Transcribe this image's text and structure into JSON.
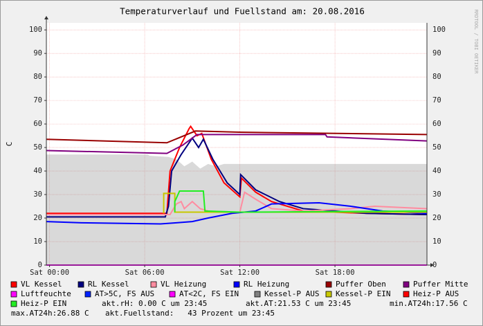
{
  "chart_data": {
    "type": "line",
    "title": "Temperaturverlauf und Fuellstand am: 20.08.2016",
    "y_label": "C",
    "side_text": "RRDTOOL / TOBI OETIKER",
    "xlim": [
      -0.2,
      23.8
    ],
    "xticks": [
      {
        "value": 0,
        "label": "Sat 00:00"
      },
      {
        "value": 6,
        "label": "Sat 06:00"
      },
      {
        "value": 12,
        "label": "Sat 12:00"
      },
      {
        "value": 18,
        "label": "Sat 18:00"
      }
    ],
    "ylim": [
      0,
      103
    ],
    "yticks": [
      0,
      10,
      20,
      30,
      40,
      50,
      60,
      70,
      80,
      90,
      100
    ],
    "grid": true,
    "series": [
      {
        "name": "VL Kessel",
        "color": "#ff0000",
        "x": [
          -0.2,
          7.4,
          7.6,
          8.2,
          8.8,
          8.9,
          9.3,
          9.6,
          10.2,
          11,
          12,
          12.1,
          13,
          14,
          16,
          20,
          23.8
        ],
        "values": [
          22,
          22,
          40,
          50,
          58,
          59,
          55,
          56,
          45,
          35,
          29,
          37,
          31,
          27,
          23,
          22,
          21.5
        ]
      },
      {
        "name": "RL Kessel",
        "color": "#000080",
        "x": [
          -0.2,
          7.3,
          7.5,
          7.7,
          8.3,
          9,
          9.4,
          9.7,
          10.3,
          11.2,
          12,
          12.05,
          13,
          14.5,
          16,
          18,
          20,
          23.8
        ],
        "values": [
          20.5,
          20.5,
          25,
          40,
          47,
          54,
          50,
          53.5,
          45,
          35,
          30,
          38.5,
          32,
          27,
          24,
          23,
          22,
          21.5
        ]
      },
      {
        "name": "VL Heizung",
        "color": "#ff8ca0",
        "x": [
          -0.2,
          7.6,
          8,
          8.3,
          8.5,
          9,
          9.5,
          10,
          11,
          12,
          12.3,
          13,
          14,
          16,
          19,
          20.5,
          23.8
        ],
        "values": [
          21.5,
          21.5,
          26,
          27,
          24,
          27,
          24,
          23,
          22.5,
          22.5,
          31,
          28,
          24,
          23,
          24,
          25,
          24
        ]
      },
      {
        "name": "RL Heizung",
        "color": "#0000ff",
        "x": [
          -0.2,
          2,
          7,
          8,
          9,
          10,
          11.5,
          13,
          14,
          17,
          19,
          21,
          23.8
        ],
        "values": [
          18.5,
          18,
          17.5,
          18,
          18.5,
          20,
          22,
          23,
          26,
          26.5,
          25,
          23,
          22
        ]
      },
      {
        "name": "Puffer Oben",
        "color": "#990000",
        "x": [
          -0.2,
          7.4,
          9.2,
          12,
          23.8
        ],
        "values": [
          53.5,
          52,
          57,
          56.5,
          55.5
        ]
      },
      {
        "name": "Puffer Mitte",
        "color": "#800080",
        "x": [
          -0.2,
          7.4,
          8.4,
          9.3,
          17.4,
          17.5,
          23.8
        ],
        "values": [
          48.7,
          47.5,
          51,
          55.5,
          55.5,
          54.5,
          52.8
        ]
      },
      {
        "name": "Luftfeuchte",
        "color": "#ff00ff",
        "x": [
          -0.2,
          23.8
        ],
        "values": [
          0,
          0
        ]
      },
      {
        "name": "AT>5C, FS AUS",
        "color": "#0022ff"
      },
      {
        "name": "AT<2C, FS EIN",
        "color": "#ff00ff"
      },
      {
        "name": "Kessel-P AUS",
        "color": "#808080",
        "style": "area",
        "x": [
          -0.2,
          6.2,
          6.3,
          7.5,
          8,
          8.5,
          9,
          9.5,
          10,
          10.5,
          11,
          23.8
        ],
        "values": [
          47,
          47,
          46.5,
          46,
          45,
          42,
          44,
          41,
          43,
          42,
          43,
          43
        ]
      },
      {
        "name": "Kessel-P EIN",
        "color": "#c8c800",
        "x": [
          7.2,
          7.2,
          7.9,
          7.9,
          23.8
        ],
        "values": [
          22,
          30.5,
          30.5,
          22.5,
          22.5
        ]
      },
      {
        "name": "Heiz-P AUS",
        "color": "#ff0000"
      },
      {
        "name": "Heiz-P EIN",
        "color": "#22ee22",
        "x": [
          7.9,
          7.9,
          8.2,
          9.7,
          9.8,
          12,
          23.8
        ],
        "values": [
          22.5,
          27,
          31.5,
          31.5,
          23,
          22.5,
          23
        ]
      }
    ],
    "footer": [
      "akt.rH: 0.00 C um 23:45",
      "akt.AT:21.53 C um 23:45",
      "min.AT24h:17.56 C",
      "max.AT24h:26.88 C",
      "akt.Fuellstand:   43 Prozent um 23:45"
    ]
  }
}
